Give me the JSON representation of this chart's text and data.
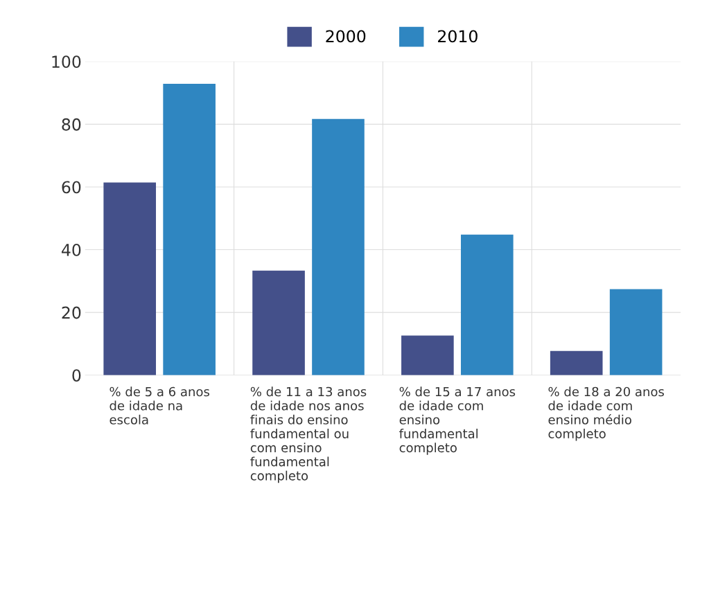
{
  "chart_data": {
    "type": "bar",
    "categories": [
      "% de 5 a 6 anos de idade na escola",
      "% de 11 a 13 anos de idade nos anos finais do ensino fundamental ou com ensino fundamental completo",
      "% de 15 a 17 anos de idade com ensino fundamental completo",
      "% de 18 a 20 anos de idade com ensino médio completo"
    ],
    "series": [
      {
        "name": "2000",
        "color": "#44508a",
        "values": [
          61.4,
          33.3,
          12.6,
          7.7
        ]
      },
      {
        "name": "2010",
        "color": "#2f86c1",
        "values": [
          92.9,
          81.7,
          44.8,
          27.4
        ]
      }
    ],
    "ylim": [
      0,
      100
    ],
    "yticks": [
      0,
      20,
      40,
      60,
      80,
      100
    ],
    "grid": true,
    "legend": "top"
  }
}
